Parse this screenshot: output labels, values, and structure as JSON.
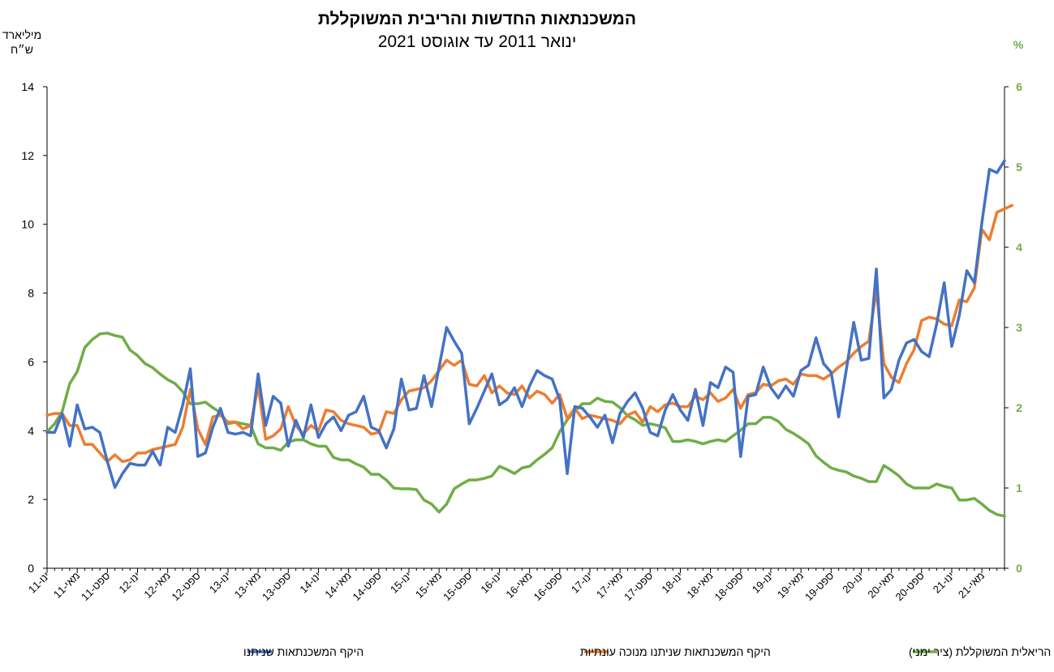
{
  "chart_data": {
    "type": "line",
    "title": "המשכנתאות החדשות והריבית המשוקללת",
    "subtitle": "ינואר 2011 עד אוגוסט 2021",
    "y_left_label_lines": [
      "מיליארד",
      "ש״ח"
    ],
    "y_right_label": "%",
    "ylim_left": [
      0,
      14
    ],
    "ylim_right": [
      0,
      6
    ],
    "yticks_left": [
      "0",
      "2",
      "4",
      "6",
      "8",
      "10",
      "12",
      "14"
    ],
    "yticks_right": [
      "0",
      "1",
      "2",
      "3",
      "4",
      "5",
      "6"
    ],
    "x_tick_labels": [
      "ינו-11",
      "מאי-11",
      "ספט-11",
      "ינו-12",
      "מאי-12",
      "ספט-12",
      "ינו-13",
      "מאי-13",
      "ספט-13",
      "ינו-14",
      "מאי-14",
      "ספט-14",
      "ינו-15",
      "מאי-15",
      "ספט-15",
      "ינו-16",
      "מאי-16",
      "ספט-16",
      "ינו-17",
      "מאי-17",
      "ספט-17",
      "ינו-18",
      "מאי-18",
      "ספט-18",
      "ינו-19",
      "מאי-19",
      "ספט-19",
      "ינו-20",
      "מאי-20",
      "ספט-20",
      "ינו-21",
      "מאי-21"
    ],
    "x_tick_step_months": 4,
    "grid": false,
    "legend_position": "bottom",
    "colors": {
      "total": "#4472c4",
      "seasonal": "#ed7d31",
      "rate": "#70ad47"
    },
    "series": [
      {
        "name": "היקף המשכנתאות שניתנו",
        "axis": "left",
        "color": "#4472c4",
        "values": [
          3.95,
          3.95,
          4.5,
          3.55,
          4.75,
          4.05,
          4.1,
          3.95,
          3.1,
          2.35,
          2.75,
          3.05,
          3.0,
          3.0,
          3.4,
          3.0,
          4.1,
          3.95,
          4.75,
          5.8,
          3.25,
          3.35,
          4.1,
          4.65,
          3.95,
          3.9,
          3.95,
          3.85,
          5.65,
          4.15,
          5.0,
          4.8,
          3.55,
          4.3,
          3.8,
          4.75,
          3.8,
          4.2,
          4.4,
          4.0,
          4.45,
          4.55,
          5.0,
          4.1,
          4.0,
          3.5,
          4.05,
          5.5,
          4.6,
          4.65,
          5.6,
          4.7,
          5.85,
          7.0,
          6.6,
          6.25,
          4.2,
          4.65,
          5.15,
          5.65,
          4.75,
          4.9,
          5.25,
          4.7,
          5.3,
          5.75,
          5.6,
          5.5,
          4.9,
          2.75,
          4.7,
          4.65,
          4.4,
          4.1,
          4.45,
          3.65,
          4.5,
          4.85,
          5.1,
          4.65,
          3.95,
          3.85,
          4.6,
          5.05,
          4.6,
          4.3,
          5.2,
          4.15,
          5.4,
          5.25,
          5.85,
          5.7,
          3.25,
          5.0,
          5.05,
          5.85,
          5.25,
          4.95,
          5.3,
          5.0,
          5.75,
          5.9,
          6.7,
          5.95,
          5.7,
          4.4,
          5.75,
          7.15,
          6.05,
          6.1,
          8.7,
          4.95,
          5.2,
          6.05,
          6.55,
          6.65,
          6.3,
          6.15,
          7.1,
          8.3,
          6.45,
          7.35,
          8.65,
          8.3,
          10.05,
          11.6,
          11.5,
          11.85
        ]
      },
      {
        "name": "היקף המשכנתאות שניתנו מנוכה עונתיות",
        "axis": "left",
        "color": "#ed7d31",
        "values": [
          4.45,
          4.5,
          4.5,
          4.15,
          4.15,
          3.6,
          3.6,
          3.35,
          3.1,
          3.3,
          3.1,
          3.15,
          3.35,
          3.35,
          3.45,
          3.5,
          3.55,
          3.6,
          4.1,
          5.2,
          4.05,
          3.6,
          4.4,
          4.45,
          4.25,
          4.25,
          4.05,
          4.15,
          5.3,
          3.75,
          3.85,
          4.05,
          4.7,
          4.15,
          3.9,
          4.15,
          4.0,
          4.6,
          4.55,
          4.3,
          4.2,
          4.15,
          4.1,
          3.9,
          3.95,
          4.55,
          4.5,
          4.9,
          5.15,
          5.2,
          5.25,
          5.45,
          5.75,
          6.05,
          5.9,
          6.05,
          5.35,
          5.3,
          5.6,
          5.1,
          5.3,
          5.1,
          5.05,
          5.3,
          4.95,
          5.15,
          5.05,
          4.8,
          5.05,
          4.35,
          4.65,
          4.35,
          4.45,
          4.4,
          4.35,
          4.3,
          4.2,
          4.45,
          4.55,
          4.25,
          4.7,
          4.55,
          4.75,
          4.8,
          4.7,
          4.7,
          5.0,
          4.9,
          5.1,
          4.85,
          4.95,
          5.2,
          4.65,
          5.05,
          5.1,
          5.35,
          5.3,
          5.45,
          5.5,
          5.35,
          5.65,
          5.6,
          5.6,
          5.5,
          5.65,
          5.85,
          6.0,
          6.25,
          6.45,
          6.6,
          8.1,
          5.95,
          5.55,
          5.4,
          5.95,
          6.35,
          7.2,
          7.3,
          7.25,
          7.1,
          7.05,
          7.8,
          7.75,
          8.15,
          9.85,
          9.55,
          10.35,
          10.45,
          10.55
        ]
      },
      {
        "name": "הריבית הריאלית המשוקללת (ציר ימני)",
        "axis": "right",
        "color": "#70ad47",
        "values": [
          1.7,
          1.8,
          1.95,
          2.3,
          2.45,
          2.75,
          2.85,
          2.92,
          2.93,
          2.9,
          2.88,
          2.72,
          2.65,
          2.55,
          2.5,
          2.42,
          2.35,
          2.3,
          2.2,
          2.05,
          2.05,
          2.07,
          2.0,
          1.94,
          1.8,
          1.82,
          1.8,
          1.78,
          1.55,
          1.5,
          1.5,
          1.47,
          1.57,
          1.6,
          1.6,
          1.55,
          1.52,
          1.52,
          1.38,
          1.35,
          1.35,
          1.3,
          1.26,
          1.17,
          1.17,
          1.1,
          1.0,
          0.99,
          0.99,
          0.98,
          0.85,
          0.8,
          0.7,
          0.8,
          0.99,
          1.05,
          1.1,
          1.1,
          1.12,
          1.15,
          1.27,
          1.23,
          1.18,
          1.25,
          1.27,
          1.35,
          1.42,
          1.5,
          1.7,
          1.85,
          1.96,
          2.05,
          2.05,
          2.12,
          2.08,
          2.07,
          2.0,
          1.9,
          1.85,
          1.78,
          1.8,
          1.78,
          1.75,
          1.58,
          1.58,
          1.6,
          1.58,
          1.55,
          1.58,
          1.6,
          1.58,
          1.65,
          1.72,
          1.8,
          1.8,
          1.88,
          1.88,
          1.83,
          1.73,
          1.68,
          1.62,
          1.55,
          1.4,
          1.32,
          1.25,
          1.22,
          1.2,
          1.15,
          1.12,
          1.08,
          1.08,
          1.28,
          1.22,
          1.15,
          1.05,
          1.0,
          1.0,
          1.0,
          1.05,
          1.02,
          1.0,
          0.85,
          0.85,
          0.87,
          0.8,
          0.72,
          0.67,
          0.65
        ]
      }
    ]
  }
}
